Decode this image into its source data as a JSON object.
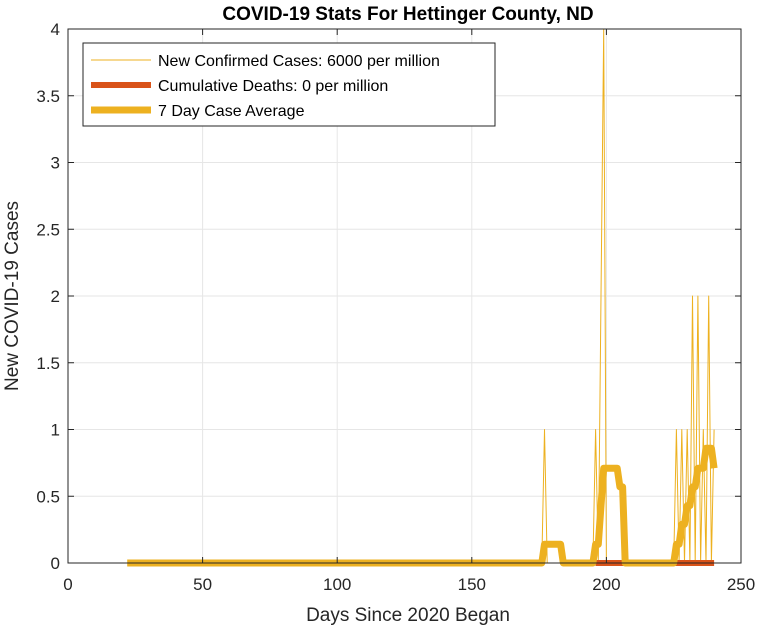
{
  "chart_data": {
    "type": "line",
    "title": "COVID-19 Stats For Hettinger County, ND",
    "xlabel": "Days Since 2020 Began",
    "ylabel": "New COVID-19 Cases",
    "xlim": [
      0,
      250
    ],
    "ylim": [
      0,
      4
    ],
    "xticks": [
      "0",
      "50",
      "100",
      "150",
      "200",
      "250"
    ],
    "yticks": [
      "0",
      "0.5",
      "1",
      "1.5",
      "2",
      "2.5",
      "3",
      "3.5",
      "4"
    ],
    "grid": true,
    "legend_position": "top-left",
    "series": [
      {
        "name": "New Confirmed Cases: 6000 per million",
        "color": "#EDB120",
        "x": [
          22,
          176,
          177,
          178,
          179,
          195,
          196,
          197,
          198,
          199,
          200,
          201,
          225,
          226,
          227,
          228,
          229,
          230,
          231,
          232,
          233,
          234,
          235,
          236,
          237,
          238,
          239,
          240
        ],
        "y": [
          0,
          0,
          1,
          0,
          0,
          0,
          1,
          0,
          2,
          4,
          0,
          0,
          0,
          1,
          0,
          1,
          0,
          1,
          0,
          2,
          0,
          2,
          0,
          1,
          0,
          2,
          0,
          1
        ]
      },
      {
        "name": "Cumulative Deaths: 0 per million",
        "color": "#D95319",
        "x": [
          196,
          206,
          231,
          240
        ],
        "y": [
          0,
          0,
          0,
          0
        ]
      },
      {
        "name": "7 Day Case Average",
        "color": "#EDB120",
        "x": [
          22,
          176,
          177,
          178,
          183,
          184,
          195,
          196,
          197,
          198,
          199,
          200,
          204,
          205,
          206,
          207,
          225,
          226,
          227,
          228,
          229,
          230,
          231,
          232,
          233,
          234,
          235,
          236,
          237,
          238,
          239,
          240
        ],
        "y": [
          0,
          0,
          0.14,
          0.14,
          0.14,
          0,
          0,
          0.14,
          0.14,
          0.43,
          0.71,
          0.71,
          0.71,
          0.57,
          0.57,
          0,
          0,
          0.14,
          0.14,
          0.29,
          0.29,
          0.43,
          0.43,
          0.57,
          0.57,
          0.71,
          0.71,
          0.71,
          0.86,
          0.86,
          0.86,
          0.71
        ]
      }
    ]
  }
}
